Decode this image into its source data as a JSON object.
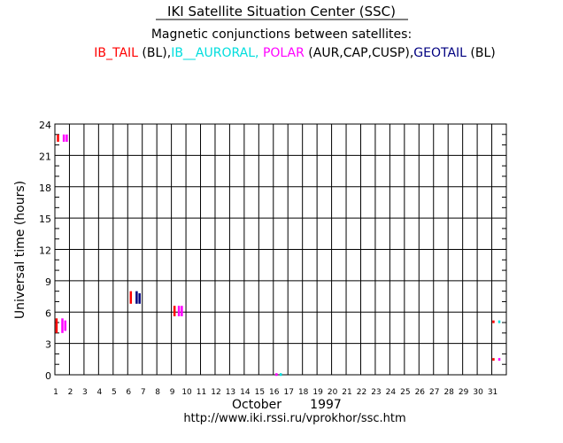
{
  "chart_data": {
    "type": "scatter",
    "title": "IKI Satellite Situation Center (SSC)",
    "subtitle": "Magnetic conjunctions between satellites:",
    "legend_line": [
      {
        "text": "IB_TAIL",
        "color": "#ff0000"
      },
      {
        "text": " (BL),",
        "color": "#000000"
      },
      {
        "text": "IB__AURORAL,",
        "color": "#00dddd"
      },
      {
        "text": " ",
        "color": "#000000"
      },
      {
        "text": "POLAR",
        "color": "#ff00ff"
      },
      {
        "text": " (AUR,CAP,CUSP),",
        "color": "#000000"
      },
      {
        "text": "GEOTAIL",
        "color": "#000080"
      },
      {
        "text": " (BL)",
        "color": "#000000"
      }
    ],
    "ylabel": "Universal time  (hours)",
    "xlabel_month": "October",
    "xlabel_year": "1997",
    "xlim": [
      1,
      32
    ],
    "ylim": [
      0,
      24
    ],
    "x_ticks": [
      1,
      2,
      3,
      4,
      5,
      6,
      7,
      8,
      9,
      10,
      11,
      12,
      13,
      14,
      15,
      16,
      17,
      18,
      19,
      20,
      21,
      22,
      23,
      24,
      25,
      26,
      27,
      28,
      29,
      30,
      31
    ],
    "y_ticks": [
      0,
      3,
      6,
      9,
      12,
      15,
      18,
      21,
      24
    ],
    "grid": true,
    "colors": {
      "IB_TAIL": "#ff0000",
      "IB_AURORAL": "#00dddd",
      "POLAR": "#ff00ff",
      "GEOTAIL": "#000080"
    },
    "series": [
      {
        "name": "IB_TAIL",
        "color": "#ff0000",
        "intervals": [
          {
            "x": 1.1,
            "y0": 4.0,
            "y1": 5.4
          },
          {
            "x": 1.2,
            "y0": 22.3,
            "y1": 23.0
          },
          {
            "x": 6.2,
            "y0": 6.8,
            "y1": 8.0
          },
          {
            "x": 9.2,
            "y0": 5.6,
            "y1": 6.6
          },
          {
            "x": 31.1,
            "y0": 5.0,
            "y1": 5.2
          },
          {
            "x": 31.1,
            "y0": 1.4,
            "y1": 1.6
          }
        ]
      },
      {
        "name": "IB_AURORAL",
        "color": "#00dddd",
        "intervals": [
          {
            "x": 16.5,
            "y0": 0.0,
            "y1": 0.15
          },
          {
            "x": 31.5,
            "y0": 5.0,
            "y1": 5.2
          }
        ]
      },
      {
        "name": "POLAR",
        "color": "#ff00ff",
        "intervals": [
          {
            "x": 1.5,
            "y0": 4.0,
            "y1": 5.4
          },
          {
            "x": 1.7,
            "y0": 4.2,
            "y1": 5.2
          },
          {
            "x": 1.6,
            "y0": 22.3,
            "y1": 23.0
          },
          {
            "x": 1.8,
            "y0": 22.3,
            "y1": 23.0
          },
          {
            "x": 9.5,
            "y0": 5.6,
            "y1": 6.6
          },
          {
            "x": 9.7,
            "y0": 5.6,
            "y1": 6.6
          },
          {
            "x": 16.2,
            "y0": 0.0,
            "y1": 0.15
          },
          {
            "x": 31.5,
            "y0": 1.4,
            "y1": 1.6
          }
        ]
      },
      {
        "name": "GEOTAIL",
        "color": "#000080",
        "intervals": [
          {
            "x": 6.6,
            "y0": 6.8,
            "y1": 8.0
          },
          {
            "x": 6.8,
            "y0": 6.8,
            "y1": 7.8
          }
        ]
      }
    ],
    "footer": "http://www.iki.rssi.ru/vprokhor/ssc.htm"
  }
}
